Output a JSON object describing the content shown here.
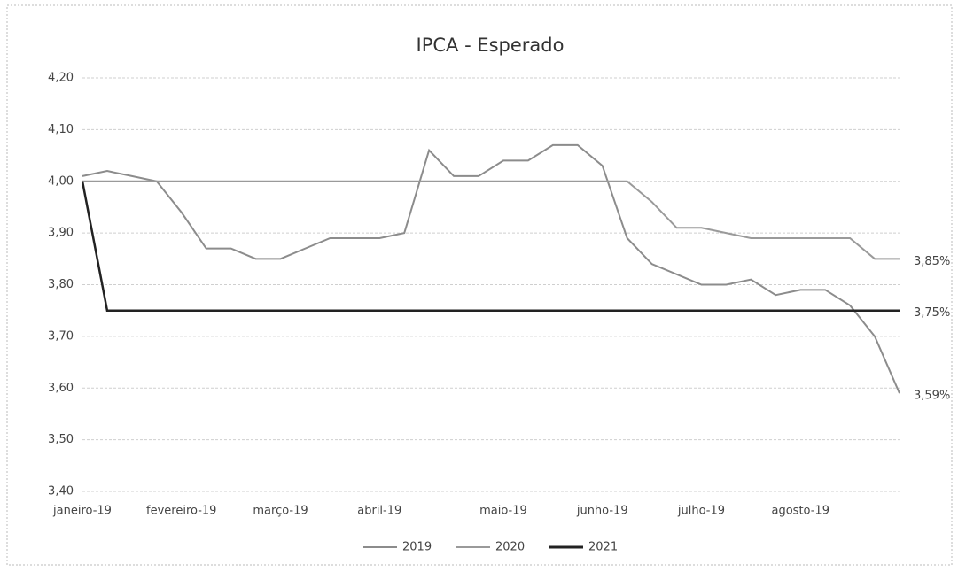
{
  "chart_data": {
    "type": "line",
    "title": "IPCA - Esperado",
    "categories": [
      "janeiro-19",
      null,
      null,
      null,
      "fevereiro-19",
      null,
      null,
      null,
      "março-19",
      null,
      null,
      null,
      "abril-19",
      null,
      null,
      null,
      null,
      "maio-19",
      null,
      null,
      null,
      "junho-19",
      null,
      null,
      null,
      "julho-19",
      null,
      null,
      null,
      "agosto-19",
      null,
      null,
      null,
      null
    ],
    "series": [
      {
        "name": "2019",
        "color": "#8c8c8c",
        "values": [
          4.01,
          4.02,
          4.01,
          4.0,
          3.94,
          3.87,
          3.87,
          3.85,
          3.85,
          3.87,
          3.89,
          3.89,
          3.89,
          3.9,
          4.06,
          4.01,
          4.01,
          4.04,
          4.04,
          4.07,
          4.07,
          4.03,
          3.89,
          3.84,
          3.82,
          3.8,
          3.8,
          3.81,
          3.78,
          3.79,
          3.79,
          3.76,
          3.7,
          3.59
        ],
        "value_labels": [
          null,
          null,
          null,
          null,
          null,
          null,
          null,
          null,
          null,
          null,
          null,
          null,
          null,
          null,
          null,
          null,
          null,
          null,
          null,
          null,
          null,
          null,
          null,
          null,
          null,
          null,
          null,
          null,
          null,
          null,
          null,
          null,
          null,
          "3,59%"
        ]
      },
      {
        "name": "2020",
        "color": "#9a9a9a",
        "values": [
          4.0,
          4.0,
          4.0,
          4.0,
          4.0,
          4.0,
          4.0,
          4.0,
          4.0,
          4.0,
          4.0,
          4.0,
          4.0,
          4.0,
          4.0,
          4.0,
          4.0,
          4.0,
          4.0,
          4.0,
          4.0,
          4.0,
          4.0,
          3.96,
          3.91,
          3.91,
          3.9,
          3.89,
          3.89,
          3.89,
          3.89,
          3.89,
          3.85,
          3.85
        ],
        "value_labels": [
          null,
          null,
          null,
          null,
          null,
          null,
          null,
          null,
          null,
          null,
          null,
          null,
          null,
          null,
          null,
          null,
          null,
          null,
          null,
          null,
          null,
          null,
          null,
          null,
          null,
          null,
          null,
          null,
          null,
          null,
          null,
          null,
          null,
          "3,85%"
        ]
      },
      {
        "name": "2021",
        "color": "#222222",
        "values": [
          4.0,
          3.75,
          3.75,
          3.75,
          3.75,
          3.75,
          3.75,
          3.75,
          3.75,
          3.75,
          3.75,
          3.75,
          3.75,
          3.75,
          3.75,
          3.75,
          3.75,
          3.75,
          3.75,
          3.75,
          3.75,
          3.75,
          3.75,
          3.75,
          3.75,
          3.75,
          3.75,
          3.75,
          3.75,
          3.75,
          3.75,
          3.75,
          3.75,
          3.75
        ],
        "value_labels": [
          null,
          null,
          null,
          null,
          null,
          null,
          null,
          null,
          null,
          null,
          null,
          null,
          null,
          null,
          null,
          null,
          null,
          null,
          null,
          null,
          null,
          null,
          null,
          null,
          null,
          null,
          null,
          null,
          null,
          null,
          null,
          null,
          null,
          "3,75%"
        ]
      }
    ],
    "ylim": [
      3.4,
      4.2
    ],
    "yticks": [
      {
        "value": 3.4,
        "label": "3,40"
      },
      {
        "value": 3.5,
        "label": "3,50"
      },
      {
        "value": 3.6,
        "label": "3,60"
      },
      {
        "value": 3.7,
        "label": "3,70"
      },
      {
        "value": 3.8,
        "label": "3,80"
      },
      {
        "value": 3.9,
        "label": "3,90"
      },
      {
        "value": 4.0,
        "label": "4,00"
      },
      {
        "value": 4.1,
        "label": "4,10"
      },
      {
        "value": 4.2,
        "label": "4,20"
      }
    ],
    "grid": true,
    "legend": "bottom"
  }
}
